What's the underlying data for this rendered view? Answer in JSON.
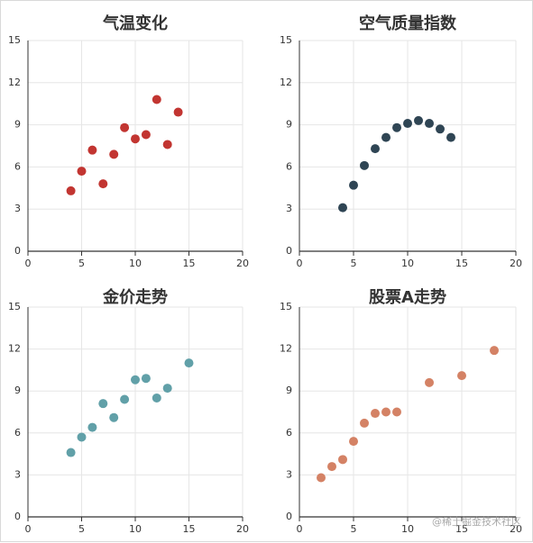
{
  "chart_data": [
    {
      "type": "scatter",
      "title": "气温变化",
      "color": "#c23531",
      "xlim": [
        0,
        20
      ],
      "ylim": [
        0,
        15
      ],
      "xticks": [
        "0",
        "5",
        "10",
        "15",
        "20"
      ],
      "yticks": [
        "0",
        "3",
        "6",
        "9",
        "12",
        "15"
      ],
      "grid": true,
      "points": [
        [
          4,
          4.3
        ],
        [
          5,
          5.7
        ],
        [
          6,
          7.2
        ],
        [
          7,
          4.8
        ],
        [
          8,
          6.9
        ],
        [
          9,
          8.8
        ],
        [
          10,
          8.0
        ],
        [
          11,
          8.3
        ],
        [
          12,
          10.8
        ],
        [
          13,
          7.6
        ],
        [
          14,
          9.9
        ]
      ]
    },
    {
      "type": "scatter",
      "title": "空气质量指数",
      "color": "#2f4554",
      "xlim": [
        0,
        20
      ],
      "ylim": [
        0,
        15
      ],
      "xticks": [
        "0",
        "5",
        "10",
        "15",
        "20"
      ],
      "yticks": [
        "0",
        "3",
        "6",
        "9",
        "12",
        "15"
      ],
      "grid": true,
      "points": [
        [
          4,
          3.1
        ],
        [
          5,
          4.7
        ],
        [
          6,
          6.1
        ],
        [
          7,
          7.3
        ],
        [
          8,
          8.1
        ],
        [
          9,
          8.8
        ],
        [
          10,
          9.1
        ],
        [
          11,
          9.3
        ],
        [
          12,
          9.1
        ],
        [
          13,
          8.7
        ],
        [
          14,
          8.1
        ]
      ]
    },
    {
      "type": "scatter",
      "title": "金价走势",
      "color": "#61a0a8",
      "xlim": [
        0,
        20
      ],
      "ylim": [
        0,
        15
      ],
      "xticks": [
        "0",
        "5",
        "10",
        "15",
        "20"
      ],
      "yticks": [
        "0",
        "3",
        "6",
        "9",
        "12",
        "15"
      ],
      "grid": true,
      "points": [
        [
          4,
          4.6
        ],
        [
          5,
          5.7
        ],
        [
          6,
          6.4
        ],
        [
          7,
          8.1
        ],
        [
          8,
          7.1
        ],
        [
          9,
          8.4
        ],
        [
          10,
          9.8
        ],
        [
          11,
          9.9
        ],
        [
          12,
          8.5
        ],
        [
          13,
          9.2
        ],
        [
          15,
          11.0
        ]
      ]
    },
    {
      "type": "scatter",
      "title": "股票A走势",
      "color": "#d48265",
      "xlim": [
        0,
        20
      ],
      "ylim": [
        0,
        15
      ],
      "xticks": [
        "0",
        "5",
        "10",
        "15",
        "20"
      ],
      "yticks": [
        "0",
        "3",
        "6",
        "9",
        "12",
        "15"
      ],
      "grid": true,
      "points": [
        [
          2,
          2.8
        ],
        [
          3,
          3.6
        ],
        [
          4,
          4.1
        ],
        [
          5,
          5.4
        ],
        [
          6,
          6.7
        ],
        [
          7,
          7.4
        ],
        [
          8,
          7.5
        ],
        [
          9,
          7.5
        ],
        [
          12,
          9.6
        ],
        [
          15,
          10.1
        ],
        [
          18,
          11.9
        ]
      ]
    }
  ],
  "watermark": "@稀土掘金技术社区"
}
